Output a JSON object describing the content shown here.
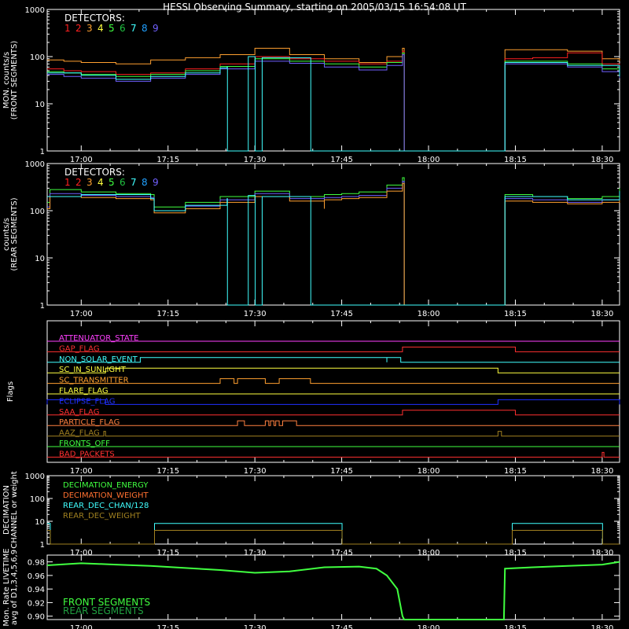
{
  "title": "HESSI Observing Summary, starting on 2005/03/15 16:54:08 UT",
  "colors": {
    "bg": "#000000",
    "axis": "#ffffff",
    "det": [
      "#ff2020",
      "#ff2020",
      "#ffa030",
      "#ffff40",
      "#40ff40",
      "#20c040",
      "#40ffff",
      "#20a0ff",
      "#7060ff"
    ],
    "front": "#40ff40",
    "rear": "#20a040"
  },
  "time_ticks": [
    "17:00",
    "17:15",
    "17:30",
    "17:45",
    "18:00",
    "18:15",
    "18:30"
  ],
  "time_tick_hours": [
    17.0,
    17.25,
    17.5,
    17.75,
    18.0,
    18.25,
    18.5
  ],
  "chart_data": [
    {
      "id": "front",
      "type": "line",
      "ylabel": [
        "MON. counts/s",
        "(FRONT SEGMENTS)"
      ],
      "yscale": "log",
      "ylim": [
        1,
        1000
      ],
      "ytick_labels": [
        "1",
        "10",
        "100",
        "1000"
      ],
      "legend_title": "DETECTORS:",
      "legend_numbers": [
        "1",
        "2",
        "3",
        "4",
        "5",
        "6",
        "7",
        "8",
        "9"
      ],
      "xlim_hours": [
        16.902,
        18.55
      ],
      "series": [
        {
          "color_index": 2,
          "x": [
            16.902,
            16.95,
            17.0,
            17.1,
            17.2,
            17.3,
            17.4,
            17.5,
            17.6,
            17.7,
            17.8,
            17.88,
            17.925,
            17.93,
            18.217,
            18.22,
            18.3,
            18.4,
            18.5,
            18.55
          ],
          "y": [
            85,
            80,
            75,
            70,
            85,
            95,
            110,
            150,
            110,
            90,
            75,
            100,
            150,
            1,
            1,
            140,
            140,
            130,
            90,
            80
          ]
        },
        {
          "color_index": 0,
          "x": [
            16.902,
            16.95,
            17.0,
            17.1,
            17.2,
            17.3,
            17.4,
            17.5,
            17.6,
            17.7,
            17.8,
            17.88,
            17.925,
            17.93,
            18.217,
            18.22,
            18.3,
            18.4,
            18.5,
            18.55
          ],
          "y": [
            55,
            50,
            48,
            42,
            45,
            55,
            70,
            100,
            90,
            80,
            70,
            80,
            130,
            1,
            1,
            90,
            95,
            120,
            70,
            50
          ]
        },
        {
          "color_index": 4,
          "x": [
            16.902,
            16.95,
            17.0,
            17.1,
            17.2,
            17.3,
            17.4,
            17.5,
            17.6,
            17.7,
            17.8,
            17.88,
            17.925,
            17.93,
            18.217,
            18.22,
            18.3,
            18.4,
            18.5,
            18.55
          ],
          "y": [
            48,
            45,
            42,
            38,
            42,
            50,
            62,
            90,
            80,
            70,
            60,
            75,
            120,
            1,
            1,
            80,
            80,
            70,
            55,
            40
          ]
        },
        {
          "color_index": 8,
          "x": [
            16.902,
            16.95,
            17.0,
            17.1,
            17.2,
            17.3,
            17.4,
            17.5,
            17.6,
            17.7,
            17.8,
            17.88,
            17.925,
            17.93,
            18.217,
            18.22,
            18.3,
            18.4,
            18.5,
            18.55
          ],
          "y": [
            42,
            38,
            35,
            30,
            35,
            42,
            55,
            80,
            72,
            60,
            52,
            65,
            110,
            1,
            1,
            70,
            70,
            60,
            48,
            35
          ]
        },
        {
          "color_index": 6,
          "x": [
            16.902,
            17.0,
            17.1,
            17.2,
            17.3,
            17.4,
            17.42,
            17.421,
            17.48,
            17.481,
            17.5,
            17.501,
            17.52,
            17.521,
            17.66,
            17.661,
            17.68,
            17.7,
            17.8,
            17.88,
            17.925,
            17.93,
            18.217,
            18.22,
            18.4,
            18.55
          ],
          "y": [
            45,
            40,
            33,
            38,
            45,
            58,
            60,
            1,
            1,
            100,
            100,
            1,
            1,
            95,
            95,
            1,
            1,
            1,
            1,
            1,
            1,
            1,
            1,
            75,
            65,
            38
          ]
        }
      ]
    },
    {
      "id": "rear",
      "type": "line",
      "ylabel": [
        "counts/s",
        "(REAR SEGMENTS)"
      ],
      "yscale": "log",
      "ylim": [
        1,
        1000
      ],
      "ytick_labels": [
        "1",
        "10",
        "100",
        "1000"
      ],
      "legend_title": "DETECTORS:",
      "legend_numbers": [
        "1",
        "2",
        "3",
        "4",
        "5",
        "6",
        "7",
        "8",
        "9"
      ],
      "xlim_hours": [
        16.902,
        18.55
      ],
      "series": [
        {
          "color_index": 4,
          "x": [
            16.902,
            16.91,
            17.0,
            17.1,
            17.2,
            17.21,
            17.3,
            17.4,
            17.5,
            17.6,
            17.7,
            17.7,
            17.75,
            17.8,
            17.88,
            17.925,
            17.93,
            18.217,
            18.22,
            18.3,
            18.4,
            18.5,
            18.55
          ],
          "y": [
            150,
            280,
            250,
            230,
            220,
            120,
            150,
            200,
            260,
            200,
            140,
            220,
            230,
            250,
            350,
            500,
            1,
            1,
            220,
            200,
            180,
            200,
            300
          ]
        },
        {
          "color_index": 8,
          "x": [
            16.902,
            16.91,
            17.0,
            17.1,
            17.2,
            17.21,
            17.3,
            17.4,
            17.5,
            17.6,
            17.7,
            17.7,
            17.75,
            17.8,
            17.88,
            17.925,
            17.93,
            18.217,
            18.22,
            18.3,
            18.4,
            18.5,
            18.55
          ],
          "y": [
            120,
            230,
            210,
            200,
            190,
            100,
            125,
            170,
            230,
            180,
            120,
            190,
            200,
            210,
            300,
            420,
            1,
            1,
            180,
            170,
            150,
            170,
            250
          ]
        },
        {
          "color_index": 2,
          "x": [
            16.902,
            16.91,
            17.0,
            17.1,
            17.2,
            17.21,
            17.3,
            17.4,
            17.5,
            17.6,
            17.7,
            17.7,
            17.75,
            17.8,
            17.88,
            17.925,
            17.93,
            18.217,
            18.22,
            18.3,
            18.4,
            18.5,
            18.55
          ],
          "y": [
            110,
            200,
            190,
            180,
            170,
            90,
            110,
            150,
            200,
            160,
            110,
            170,
            180,
            190,
            260,
            380,
            1,
            1,
            160,
            150,
            140,
            150,
            220
          ]
        },
        {
          "color_index": 6,
          "x": [
            16.902,
            17.0,
            17.2,
            17.21,
            17.3,
            17.42,
            17.421,
            17.48,
            17.481,
            17.5,
            17.501,
            17.52,
            17.521,
            17.66,
            17.661,
            17.7,
            17.8,
            17.93,
            18.217,
            18.22,
            18.4,
            18.55
          ],
          "y": [
            200,
            220,
            180,
            100,
            130,
            180,
            1,
            1,
            210,
            210,
            1,
            1,
            200,
            200,
            1,
            1,
            1,
            1,
            1,
            200,
            170,
            260
          ]
        }
      ]
    },
    {
      "id": "flags",
      "type": "line",
      "ylabel": [
        "Flags"
      ],
      "xlim_hours": [
        16.902,
        18.55
      ],
      "flags": [
        {
          "name": "ATTENUATOR_STATE",
          "color": "#ff40ff",
          "high": []
        },
        {
          "name": "GAP_FLAG",
          "color": "#ff3030",
          "high": [
            [
              17.925,
              18.25
            ]
          ]
        },
        {
          "name": "NON_SOLAR_EVENT",
          "color": "#40ffff",
          "high": [
            [
              17.17,
              17.88
            ],
            [
              17.88,
              17.92
            ]
          ]
        },
        {
          "name": "SC_IN_SUNLIGHT",
          "color": "#ffff40",
          "high": [
            [
              17.07,
              18.2
            ]
          ]
        },
        {
          "name": "SC_TRANSMITTER",
          "color": "#ffa030",
          "high": [
            [
              17.4,
              17.44
            ],
            [
              17.45,
              17.53
            ],
            [
              17.57,
              17.66
            ]
          ]
        },
        {
          "name": "FLARE_FLAG",
          "color": "#ffff40",
          "high": []
        },
        {
          "name": "ECLIPSE_FLAG",
          "color": "#2030ff",
          "high": [
            [
              16.902,
              17.07
            ],
            [
              18.2,
              18.55
            ]
          ]
        },
        {
          "name": "SAA_FLAG",
          "color": "#ff3030",
          "high": [
            [
              17.925,
              18.25
            ]
          ]
        },
        {
          "name": "PARTICLE_FLAG",
          "color": "#ff8040",
          "high": [
            [
              17.45,
              17.47
            ],
            [
              17.53,
              17.54
            ],
            [
              17.545,
              17.555
            ],
            [
              17.56,
              17.57
            ],
            [
              17.58,
              17.62
            ]
          ]
        },
        {
          "name": "AAZ_FLAG",
          "color": "#a08020",
          "high": [
            [
              17.065,
              17.07
            ],
            [
              18.2,
              18.21
            ]
          ]
        },
        {
          "name": "FRONTS_OFF",
          "color": "#40ff40",
          "high": []
        },
        {
          "name": "BAD_PACKETS",
          "color": "#ff3030",
          "high": [
            [
              18.5,
              18.505
            ]
          ]
        }
      ]
    },
    {
      "id": "decimation",
      "type": "line",
      "ylabel": [
        "DECIMATION",
        "CHANNEL or weight"
      ],
      "yscale": "log",
      "ylim": [
        1,
        1000
      ],
      "ytick_labels": [
        "1",
        "10",
        "100",
        "1000"
      ],
      "xlim_hours": [
        16.902,
        18.55
      ],
      "legend": [
        {
          "name": "DECIMATION_ENERGY",
          "color": "#40ff40"
        },
        {
          "name": "DECIMATION_WEIGHT",
          "color": "#ff7030"
        },
        {
          "name": "REAR_DEC_CHAN/128",
          "color": "#40ffff"
        },
        {
          "name": "REAR_DEC_WEIGHT",
          "color": "#a08020"
        }
      ],
      "series": [
        {
          "color": "#40ffff",
          "x": [
            16.902,
            16.91,
            16.911,
            17.21,
            17.211,
            17.75,
            17.751,
            18.24,
            18.241,
            18.5,
            18.501,
            18.55
          ],
          "y": [
            8,
            8,
            1,
            1,
            8,
            8,
            1,
            1,
            8,
            8,
            1,
            1
          ]
        },
        {
          "color": "#a08020",
          "x": [
            16.902,
            16.91,
            16.911,
            17.21,
            17.211,
            17.75,
            17.751,
            18.24,
            18.241,
            18.5,
            18.501,
            18.55
          ],
          "y": [
            4,
            4,
            1,
            1,
            4,
            4,
            1,
            1,
            4,
            4,
            1,
            1
          ]
        }
      ]
    },
    {
      "id": "livetime",
      "type": "line",
      "ylabel": [
        "Mon. Rate LIVETIME",
        "avg of D1,3,4,5,6,9"
      ],
      "ylim": [
        0.895,
        0.99
      ],
      "ytick_labels": [
        "0.90",
        "0.92",
        "0.94",
        "0.96",
        "0.98"
      ],
      "ytick_values": [
        0.9,
        0.92,
        0.94,
        0.96,
        0.98
      ],
      "xlim_hours": [
        16.902,
        18.55
      ],
      "legend": [
        {
          "name": "FRONT SEGMENTS",
          "color": "#40ff40"
        },
        {
          "name": "REAR SEGMENTS",
          "color": "#20a040"
        }
      ],
      "series": [
        {
          "name": "FRONT SEGMENTS",
          "color": "#40ff40",
          "x": [
            16.902,
            17.0,
            17.1,
            17.2,
            17.3,
            17.4,
            17.5,
            17.6,
            17.7,
            17.8,
            17.85,
            17.88,
            17.91,
            17.925,
            17.93,
            18.217,
            18.22,
            18.3,
            18.4,
            18.5,
            18.55
          ],
          "y": [
            0.975,
            0.978,
            0.976,
            0.974,
            0.971,
            0.968,
            0.964,
            0.966,
            0.972,
            0.973,
            0.97,
            0.96,
            0.94,
            0.9,
            0.895,
            0.895,
            0.97,
            0.972,
            0.974,
            0.976,
            0.98
          ]
        }
      ]
    }
  ]
}
